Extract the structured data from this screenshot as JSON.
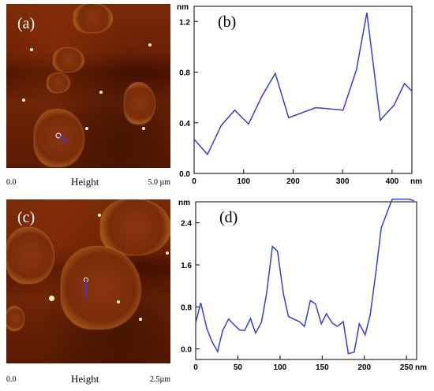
{
  "images": [
    {
      "label": "(a)",
      "scale_min": "0.0",
      "scale_title": "Height",
      "scale_max": "5.0 µm"
    },
    {
      "label": "(c)",
      "scale_min": "0.0",
      "scale_title": "Height",
      "scale_max": "2.5µm"
    }
  ],
  "chart_data": [
    {
      "type": "line",
      "panel_label": "(b)",
      "xlabel": "nm",
      "ylabel": "nm",
      "xlim": [
        0,
        440
      ],
      "ylim": [
        0,
        1.32
      ],
      "x_ticks": [
        0,
        100,
        200,
        300,
        400
      ],
      "y_ticks": [
        0.0,
        0.4,
        0.8,
        1.2
      ],
      "tick_decimals": 1,
      "grid": false,
      "color": "#3a3adf",
      "x": [
        0,
        27,
        55,
        82,
        110,
        137,
        164,
        191,
        246,
        301,
        328,
        349,
        376,
        404,
        425,
        440
      ],
      "y": [
        0.27,
        0.15,
        0.38,
        0.5,
        0.39,
        0.61,
        0.79,
        0.44,
        0.52,
        0.5,
        0.82,
        1.27,
        0.42,
        0.54,
        0.71,
        0.65
      ]
    },
    {
      "type": "line",
      "panel_label": "(d)",
      "xlabel": "nm",
      "ylabel": "nm",
      "xlim": [
        0,
        262
      ],
      "ylim": [
        -0.2,
        2.8
      ],
      "x_ticks": [
        0,
        50,
        100,
        150,
        200,
        250
      ],
      "y_ticks": [
        0.0,
        0.8,
        1.6,
        2.4
      ],
      "tick_decimals": 1,
      "grid": false,
      "color": "#3a3adf",
      "x": [
        0,
        6,
        13,
        19,
        26,
        32,
        39,
        45,
        52,
        58,
        65,
        71,
        78,
        84,
        91,
        97,
        104,
        110,
        116,
        123,
        129,
        136,
        142,
        149,
        155,
        162,
        168,
        175,
        181,
        188,
        194,
        201,
        207,
        214,
        220,
        227,
        233,
        240,
        246,
        253,
        259
      ],
      "y": [
        0.5,
        0.88,
        0.4,
        0.15,
        -0.05,
        0.35,
        0.57,
        0.47,
        0.36,
        0.35,
        0.58,
        0.3,
        0.51,
        1.05,
        1.95,
        1.86,
        1.05,
        0.62,
        0.57,
        0.52,
        0.43,
        0.92,
        0.86,
        0.48,
        0.67,
        0.49,
        0.43,
        0.52,
        -0.09,
        -0.06,
        0.48,
        0.27,
        0.65,
        1.5,
        2.3,
        2.6,
        2.85,
        2.85,
        2.85,
        2.85,
        2.82
      ]
    }
  ]
}
